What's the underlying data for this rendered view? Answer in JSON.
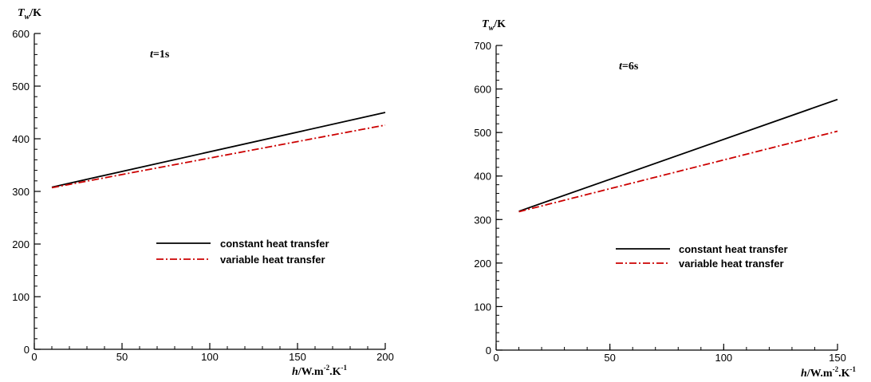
{
  "chart_data": [
    {
      "type": "line",
      "annotation": {
        "var": "t",
        "value": "=1s"
      },
      "xlabel": {
        "var": "h",
        "unit": "/W.m",
        "exp1": "-2",
        "unit2": ".K",
        "exp2": "-1"
      },
      "ylabel": {
        "var": "T",
        "sub": "w",
        "unit": "/K"
      },
      "xlim": [
        0,
        200
      ],
      "ylim": [
        0,
        600
      ],
      "xticks": [
        0,
        50,
        100,
        150,
        200
      ],
      "yticks": [
        0,
        100,
        200,
        300,
        400,
        500,
        600
      ],
      "x_minor_step": 10,
      "y_minor_step": 20,
      "legend_position": "center-right",
      "series": [
        {
          "name": "constant heat transfer",
          "color": "#000000",
          "style": "solid",
          "x": [
            10,
            200
          ],
          "y": [
            308,
            450
          ]
        },
        {
          "name": "variable heat transfer",
          "color": "#cc0000",
          "style": "dashdot",
          "x": [
            10,
            200
          ],
          "y": [
            307,
            426
          ]
        }
      ]
    },
    {
      "type": "line",
      "annotation": {
        "var": "t",
        "value": "=6s"
      },
      "xlabel": {
        "var": "h",
        "unit": "/W.m",
        "exp1": "-2",
        "unit2": ".K",
        "exp2": "-1"
      },
      "ylabel": {
        "var": "T",
        "sub": "w",
        "unit": "/K"
      },
      "xlim": [
        0,
        150
      ],
      "ylim": [
        0,
        700
      ],
      "xticks": [
        0,
        50,
        100,
        150
      ],
      "yticks": [
        0,
        100,
        200,
        300,
        400,
        500,
        600,
        700
      ],
      "x_minor_step": 10,
      "y_minor_step": 20,
      "legend_position": "center-right",
      "series": [
        {
          "name": "constant heat transfer",
          "color": "#000000",
          "style": "solid",
          "x": [
            10,
            150
          ],
          "y": [
            319,
            576
          ]
        },
        {
          "name": "variable heat transfer",
          "color": "#cc0000",
          "style": "dashdot",
          "x": [
            10,
            150
          ],
          "y": [
            318,
            503
          ]
        }
      ]
    }
  ]
}
